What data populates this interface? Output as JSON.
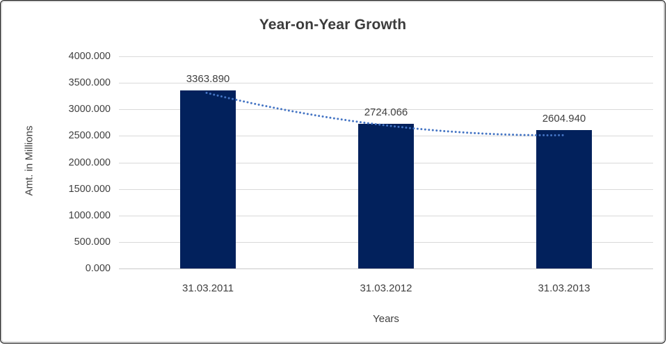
{
  "chart_data": {
    "type": "bar",
    "title": "Year-on-Year Growth",
    "categories": [
      "31.03.2011",
      "31.03.2012",
      "31.03.2013"
    ],
    "values": [
      3363.89,
      2724.066,
      2604.94
    ],
    "data_labels": [
      "3363.890",
      "2724.066",
      "2604.940"
    ],
    "xlabel": "Years",
    "ylabel": "Amt. in Millions",
    "ylim": [
      0,
      4000
    ],
    "ytick_step": 500,
    "ytick_labels": [
      "4000.000",
      "3500.000",
      "3000.000",
      "2500.000",
      "2000.000",
      "1500.000",
      "1000.000",
      "500.000",
      "0.000"
    ],
    "grid": true,
    "legend": "none",
    "trendline": {
      "style": "dotted",
      "color": "#4575C4"
    },
    "colors": {
      "bar": "#02215C",
      "gridline": "#D9D9D9",
      "text": "#3F3F3F",
      "title": "#3B3B3B",
      "background": "#FFFFFF",
      "frame_outer": "#161616",
      "frame_inner": "#D6D6D6"
    }
  }
}
